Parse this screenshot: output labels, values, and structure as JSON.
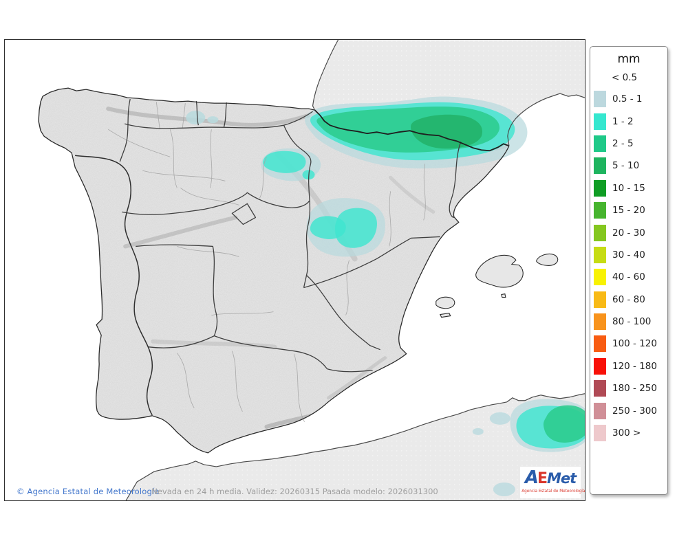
{
  "legend": {
    "title": "mm",
    "no_swatch_label": "< 0.5",
    "items": [
      {
        "label": "0.5 - 1",
        "color": "#bcd8de"
      },
      {
        "label": "1 - 2",
        "color": "#35e7cf"
      },
      {
        "label": "2 - 5",
        "color": "#1fc988"
      },
      {
        "label": "5 - 10",
        "color": "#1eb45f"
      },
      {
        "label": "10 - 15",
        "color": "#0f9d24"
      },
      {
        "label": "15 - 20",
        "color": "#46b42e"
      },
      {
        "label": "20 - 30",
        "color": "#84c71f"
      },
      {
        "label": "30 - 40",
        "color": "#c6dc13"
      },
      {
        "label": "40 - 60",
        "color": "#f8f203"
      },
      {
        "label": "60 - 80",
        "color": "#f8ba16"
      },
      {
        "label": "80 - 100",
        "color": "#f8931c"
      },
      {
        "label": "100 - 120",
        "color": "#f85c12"
      },
      {
        "label": "120 - 180",
        "color": "#f81108"
      },
      {
        "label": "180 - 250",
        "color": "#b04a55"
      },
      {
        "label": "250 - 300",
        "color": "#d08f97"
      },
      {
        "label": "300 >",
        "color": "#eec9cc"
      }
    ]
  },
  "footer": {
    "copyright": "© Agencia Estatal de Meteorología",
    "caption": "Nevada en 24 h media. Validez: 20260315 Pasada modelo: 2026031300"
  },
  "logo": {
    "word_a": "A",
    "word_e": "E",
    "word_met": "Met",
    "subtitle": "Agencia Estatal de Meteorología"
  },
  "map": {
    "sea_color": "#ffffff",
    "land_color": "#e7e7e7",
    "overlay": {
      "band_0_5": "#b9dade",
      "band_1": "#3fe5d0",
      "band_2": "#2ecc8f",
      "band_5": "#22b169"
    }
  }
}
